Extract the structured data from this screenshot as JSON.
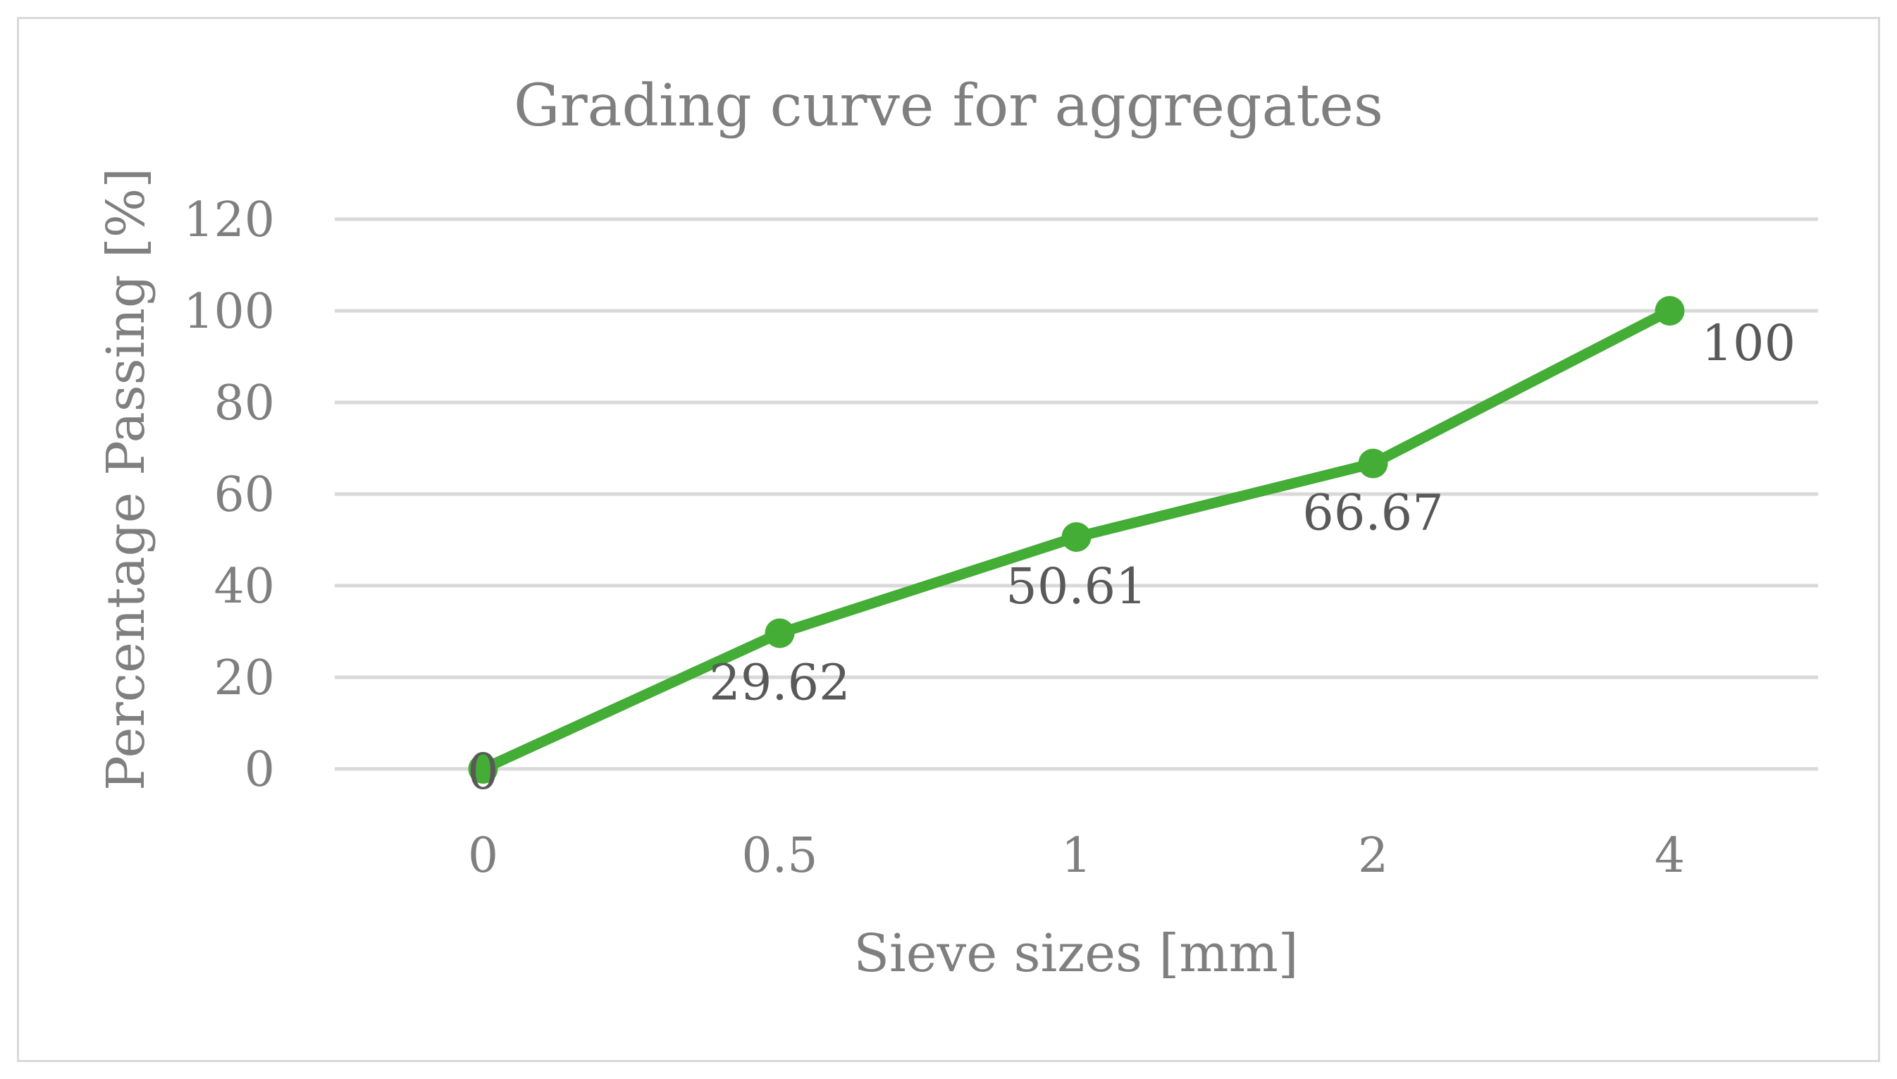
{
  "chart_data": {
    "type": "line",
    "title": "Grading curve for aggregates",
    "xlabel": "Sieve sizes [mm]",
    "ylabel": "Percentage Passing [%]",
    "categories": [
      "0",
      "0.5",
      "1",
      "2",
      "4"
    ],
    "series": [
      {
        "values": [
          0,
          29.62,
          50.61,
          66.67,
          100
        ],
        "color": "#43ad35"
      }
    ],
    "data_labels": [
      "0",
      "29.62",
      "50.61",
      "66.67",
      "100"
    ],
    "y_ticks": [
      "0",
      "20",
      "40",
      "60",
      "80",
      "100",
      "120"
    ],
    "ylim": [
      0,
      120
    ],
    "grid": true,
    "legend": "none",
    "gridline_color": "#d9d9d9",
    "text_color": "#7f7f7f"
  }
}
